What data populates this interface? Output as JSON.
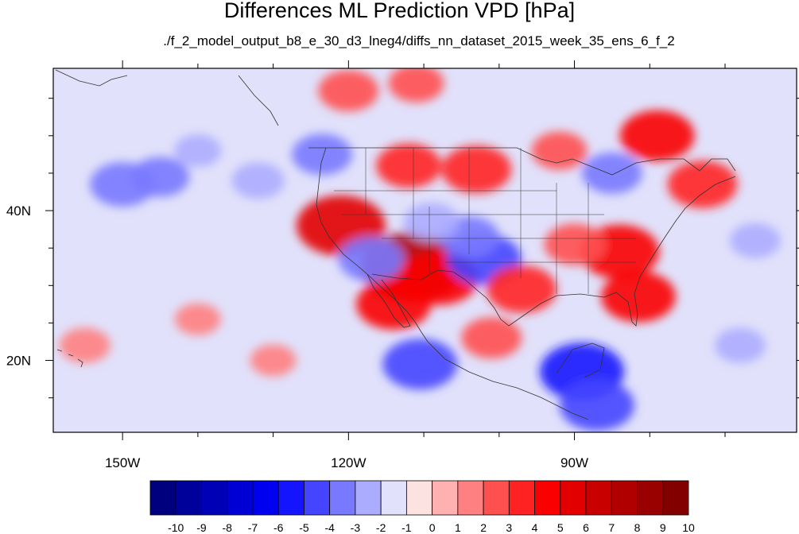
{
  "title": "Differences ML Prediction VPD [hPa]",
  "subtitle": "./f_2_model_output_b8_e_30_d3_lneg4/diffs_nn_dataset_2015_week_35_ens_6_f_2",
  "map": {
    "lon_range": [
      -159.2,
      -60.5
    ],
    "lat_range": [
      10.4,
      59.0
    ],
    "lon_ticks": [
      {
        "value": -150,
        "label": "150W"
      },
      {
        "value": -120,
        "label": "120W"
      },
      {
        "value": -90,
        "label": "90W"
      }
    ],
    "lat_ticks": [
      {
        "value": 40,
        "label": "40N"
      },
      {
        "value": 20,
        "label": "20N"
      }
    ]
  },
  "colorbar": {
    "labels": [
      "-10",
      "-9",
      "-8",
      "-7",
      "-6",
      "-5",
      "-4",
      "-3",
      "-2",
      "-1",
      "0",
      "1",
      "2",
      "3",
      "4",
      "5",
      "6",
      "7",
      "8",
      "9",
      "10"
    ],
    "colors": [
      "#00007e",
      "#00009b",
      "#0000b7",
      "#0000d4",
      "#0000f0",
      "#1414ff",
      "#4545ff",
      "#7979ff",
      "#acacff",
      "#e1e1fb",
      "#fde2e2",
      "#ffb0b0",
      "#ff8080",
      "#ff5050",
      "#ff2222",
      "#fa0000",
      "#e20000",
      "#c80000",
      "#b10000",
      "#990000",
      "#820000"
    ]
  },
  "chart_data": {
    "type": "heatmap",
    "title": "Differences ML Prediction VPD [hPa]",
    "subtitle": "./f_2_model_output_b8_e_30_d3_lneg4/diffs_nn_dataset_2015_week_35_ens_6_f_2",
    "x_axis": {
      "range": [
        -159.2,
        -60.5
      ],
      "ticks": [
        "150W",
        "120W",
        "90W"
      ]
    },
    "y_axis": {
      "range": [
        10.4,
        59.0
      ],
      "ticks": [
        "40N",
        "20N"
      ]
    },
    "color_scale": {
      "min": -10,
      "max": 10,
      "step": 1
    },
    "features": [
      {
        "lon": -150,
        "lat": 43.5,
        "value": -3.5
      },
      {
        "lon": -145,
        "lat": 44.5,
        "value": -2.8
      },
      {
        "lon": -132,
        "lat": 44,
        "value": -2.2
      },
      {
        "lon": -140,
        "lat": 48,
        "value": -1.6
      },
      {
        "lon": -118,
        "lat": 35,
        "value": -1.4
      },
      {
        "lon": -120,
        "lat": 56,
        "value": 3.0
      },
      {
        "lon": -111,
        "lat": 57,
        "value": 2.5
      },
      {
        "lon": -121,
        "lat": 38,
        "value": 6.0
      },
      {
        "lon": -111.5,
        "lat": 32.5,
        "value": 7.5
      },
      {
        "lon": -108,
        "lat": 31,
        "value": 5.0
      },
      {
        "lon": -114,
        "lat": 27.5,
        "value": 4.5
      },
      {
        "lon": -117,
        "lat": 33.5,
        "value": -3.5
      },
      {
        "lon": -102,
        "lat": 33.5,
        "value": -4.5
      },
      {
        "lon": -104,
        "lat": 36.5,
        "value": -3.0
      },
      {
        "lon": -109,
        "lat": 38.5,
        "value": -2.5
      },
      {
        "lon": -97,
        "lat": 29.5,
        "value": 4.0
      },
      {
        "lon": -103,
        "lat": 45.5,
        "value": 4.0
      },
      {
        "lon": -112,
        "lat": 46,
        "value": 3.5
      },
      {
        "lon": -92,
        "lat": 48,
        "value": 2.5
      },
      {
        "lon": -85,
        "lat": 45,
        "value": -3.0
      },
      {
        "lon": -79,
        "lat": 50,
        "value": 4.5
      },
      {
        "lon": -73,
        "lat": 43.5,
        "value": 4.0
      },
      {
        "lon": -84,
        "lat": 34.5,
        "value": 5.0
      },
      {
        "lon": -81.5,
        "lat": 28.5,
        "value": 4.5
      },
      {
        "lon": -90,
        "lat": 35.5,
        "value": 3.0
      },
      {
        "lon": -123.5,
        "lat": 47.5,
        "value": -3.0
      },
      {
        "lon": -110.5,
        "lat": 19.5,
        "value": -4.5
      },
      {
        "lon": -89,
        "lat": 18.5,
        "value": -5.5
      },
      {
        "lon": -87,
        "lat": 14,
        "value": -4.5
      },
      {
        "lon": -101,
        "lat": 23,
        "value": 3.0
      },
      {
        "lon": -155,
        "lat": 22,
        "value": 2.0
      },
      {
        "lon": -140,
        "lat": 25.5,
        "value": 1.5
      },
      {
        "lon": -130,
        "lat": 20,
        "value": 1.5
      },
      {
        "lon": -66,
        "lat": 36,
        "value": -2.0
      },
      {
        "lon": -68,
        "lat": 22,
        "value": -2.0
      }
    ]
  }
}
